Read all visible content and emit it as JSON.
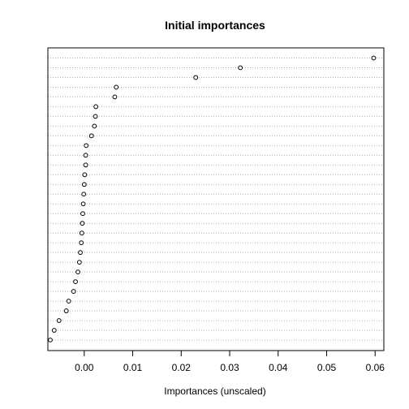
{
  "chart_data": {
    "type": "scatter",
    "title": "Initial importances",
    "xlabel": "Importances (unscaled)",
    "ylabel": "",
    "xlim": [
      -0.0075,
      0.0618
    ],
    "xticks": [
      0.0,
      0.01,
      0.02,
      0.03,
      0.04,
      0.05,
      0.06
    ],
    "xtick_labels": [
      "0.00",
      "0.01",
      "0.02",
      "0.03",
      "0.04",
      "0.05",
      "0.06"
    ],
    "grid": "horizontal dotted",
    "values": [
      0.0597,
      0.0322,
      0.023,
      0.0066,
      0.0063,
      0.0024,
      0.0023,
      0.0021,
      0.0015,
      0.0004,
      0.0003,
      0.0003,
      0.0001,
      0.0,
      -0.0001,
      -0.0002,
      -0.0003,
      -0.0004,
      -0.0005,
      -0.0006,
      -0.0008,
      -0.001,
      -0.0013,
      -0.0018,
      -0.0022,
      -0.0032,
      -0.0037,
      -0.0052,
      -0.0062,
      -0.007
    ],
    "colors": {
      "points": "#000000",
      "grid": "#b0b0b0",
      "frame": "#000000"
    }
  }
}
